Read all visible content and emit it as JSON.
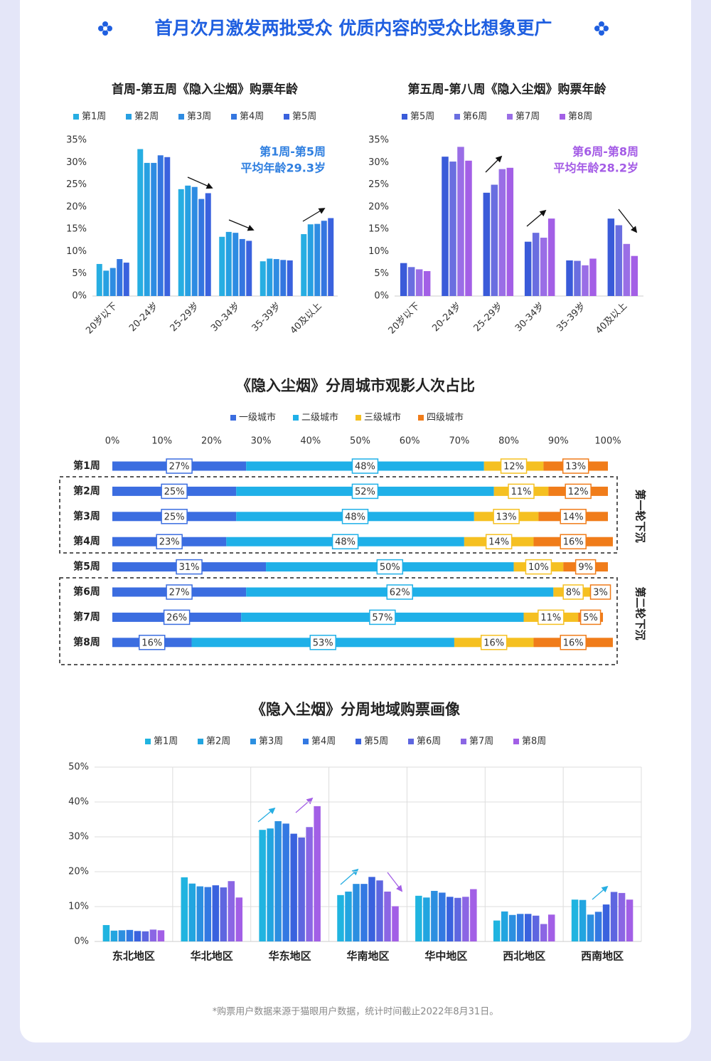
{
  "title": "首月次月激发两批受众 优质内容的受众比想象更广",
  "footnote": "*购票用户数据来源于猫眼用户数据，统计时间截止2022年8月31日。",
  "chart_data": [
    {
      "type": "bar",
      "title": "首周-第五周《隐入尘烟》购票年龄",
      "categories": [
        "20岁以下",
        "20-24岁",
        "25-29岁",
        "30-34岁",
        "35-39岁",
        "40及以上"
      ],
      "series": [
        {
          "name": "第1周",
          "color": "#27aee2",
          "values": [
            7.2,
            33.0,
            24.0,
            13.3,
            7.8,
            13.9
          ]
        },
        {
          "name": "第2周",
          "color": "#27a0e2",
          "values": [
            5.7,
            29.9,
            24.8,
            14.4,
            8.4,
            16.1
          ]
        },
        {
          "name": "第3周",
          "color": "#2e8ce2",
          "values": [
            6.3,
            29.9,
            24.5,
            14.2,
            8.3,
            16.2
          ]
        },
        {
          "name": "第4周",
          "color": "#3476e0",
          "values": [
            8.3,
            31.6,
            21.8,
            12.8,
            8.1,
            16.9
          ]
        },
        {
          "name": "第5周",
          "color": "#3a62de",
          "values": [
            7.5,
            31.2,
            23.1,
            12.4,
            8.0,
            17.5
          ]
        }
      ],
      "ylim": [
        0,
        35
      ],
      "yticks": [
        {
          "value": 0,
          "label": "0%"
        },
        {
          "value": 5,
          "label": "5%"
        },
        {
          "value": 10,
          "label": "10%"
        },
        {
          "value": 15,
          "label": "15%"
        },
        {
          "value": 20,
          "label": "20%"
        },
        {
          "value": 25,
          "label": "25%"
        },
        {
          "value": 30,
          "label": "30%"
        },
        {
          "value": 35,
          "label": "35%"
        }
      ],
      "annotations": [
        "第1周-第5周",
        "平均年龄29.3岁"
      ],
      "annotation_color": "#2f7fe0",
      "grid": false
    },
    {
      "type": "bar",
      "title": "第五周-第八周《隐入尘烟》购票年龄",
      "categories": [
        "20岁以下",
        "20-24岁",
        "25-29岁",
        "30-34岁",
        "35-39岁",
        "40及以上"
      ],
      "series": [
        {
          "name": "第5周",
          "color": "#3a5bd9",
          "values": [
            7.4,
            31.3,
            23.2,
            12.2,
            8.0,
            17.4
          ]
        },
        {
          "name": "第6周",
          "color": "#6a6ee0",
          "values": [
            6.5,
            30.2,
            25.0,
            14.2,
            7.9,
            15.9
          ]
        },
        {
          "name": "第7周",
          "color": "#9a6ee6",
          "values": [
            6.0,
            33.5,
            28.5,
            13.1,
            6.9,
            11.7
          ]
        },
        {
          "name": "第8周",
          "color": "#a35fe6",
          "values": [
            5.6,
            30.4,
            28.8,
            17.4,
            8.4,
            9.0
          ]
        }
      ],
      "ylim": [
        0,
        35
      ],
      "yticks": [
        {
          "value": 0,
          "label": "0%"
        },
        {
          "value": 5,
          "label": "5%"
        },
        {
          "value": 10,
          "label": "10%"
        },
        {
          "value": 15,
          "label": "15%"
        },
        {
          "value": 20,
          "label": "20%"
        },
        {
          "value": 25,
          "label": "25%"
        },
        {
          "value": 30,
          "label": "30%"
        },
        {
          "value": 35,
          "label": "35%"
        }
      ],
      "annotations": [
        "第6周-第8周",
        "平均年龄28.2岁"
      ],
      "annotation_color": "#a45ce6",
      "grid": false
    },
    {
      "type": "stackedbar",
      "title": "《隐入尘烟》分周城市观影人次占比",
      "categories": [
        "第1周",
        "第2周",
        "第3周",
        "第4周",
        "第5周",
        "第6周",
        "第7周",
        "第8周"
      ],
      "series": [
        {
          "name": "一级城市",
          "color": "#3b6de0",
          "values": [
            27,
            25,
            25,
            23,
            31,
            27,
            26,
            16
          ],
          "value_labels": [
            "27%",
            "25%",
            "25%",
            "23%",
            "31%",
            "27%",
            "26%",
            "16%"
          ]
        },
        {
          "name": "二级城市",
          "color": "#1fb0e8",
          "values": [
            48,
            52,
            48,
            48,
            50,
            62,
            57,
            53
          ],
          "value_labels": [
            "48%",
            "52%",
            "48%",
            "48%",
            "50%",
            "62%",
            "57%",
            "53%"
          ]
        },
        {
          "name": "三级城市",
          "color": "#f5c021",
          "values": [
            12,
            11,
            13,
            14,
            10,
            8,
            11,
            16
          ],
          "value_labels": [
            "12%",
            "11%",
            "13%",
            "14%",
            "10%",
            "8%",
            "11%",
            "16%"
          ]
        },
        {
          "name": "四级城市",
          "color": "#f07c1a",
          "values": [
            13,
            12,
            14,
            16,
            9,
            3,
            5,
            16
          ],
          "value_labels": [
            "13%",
            "12%",
            "14%",
            "16%",
            "9%",
            "3%",
            "5%",
            "16%"
          ]
        }
      ],
      "xlim": [
        0,
        100
      ],
      "xticks": [
        {
          "value": 0,
          "label": "0%"
        },
        {
          "value": 10,
          "label": "10%"
        },
        {
          "value": 20,
          "label": "20%"
        },
        {
          "value": 30,
          "label": "30%"
        },
        {
          "value": 40,
          "label": "40%"
        },
        {
          "value": 50,
          "label": "50%"
        },
        {
          "value": 60,
          "label": "60%"
        },
        {
          "value": 70,
          "label": "70%"
        },
        {
          "value": 80,
          "label": "80%"
        },
        {
          "value": 90,
          "label": "90%"
        },
        {
          "value": 100,
          "label": "100%"
        }
      ],
      "annotations": [
        "第一轮下沉",
        "第二轮下沉"
      ],
      "annotation_color": "#222"
    },
    {
      "type": "bar",
      "title": "《隐入尘烟》分周地域购票画像",
      "categories": [
        "东北地区",
        "华北地区",
        "华东地区",
        "华南地区",
        "华中地区",
        "西北地区",
        "西南地区"
      ],
      "series": [
        {
          "name": "第1周",
          "color": "#20b4e0",
          "values": [
            4.7,
            18.4,
            32.0,
            13.3,
            13.1,
            6.0,
            12.0
          ]
        },
        {
          "name": "第2周",
          "color": "#22a5e0",
          "values": [
            3.1,
            16.6,
            32.4,
            14.3,
            12.6,
            8.6,
            11.9
          ]
        },
        {
          "name": "第3周",
          "color": "#2c8fe0",
          "values": [
            3.2,
            15.8,
            34.5,
            16.5,
            14.5,
            7.6,
            7.7
          ]
        },
        {
          "name": "第4周",
          "color": "#3379e2",
          "values": [
            3.3,
            15.6,
            33.8,
            16.5,
            14.0,
            7.9,
            8.5
          ]
        },
        {
          "name": "第5周",
          "color": "#3a62de",
          "values": [
            3.0,
            16.1,
            30.9,
            18.5,
            12.8,
            7.9,
            10.6
          ]
        },
        {
          "name": "第6周",
          "color": "#5e66e0",
          "values": [
            2.9,
            15.5,
            29.8,
            17.5,
            12.5,
            7.4,
            14.2
          ]
        },
        {
          "name": "第7周",
          "color": "#8b66e4",
          "values": [
            3.4,
            17.3,
            32.8,
            14.3,
            12.8,
            5.0,
            13.9
          ]
        },
        {
          "name": "第8周",
          "color": "#a25fe6",
          "values": [
            3.2,
            12.6,
            38.8,
            10.1,
            15.0,
            7.7,
            12.0
          ]
        }
      ],
      "ylim": [
        0,
        50
      ],
      "yticks": [
        {
          "value": 0,
          "label": "0%"
        },
        {
          "value": 10,
          "label": "10%"
        },
        {
          "value": 20,
          "label": "20%"
        },
        {
          "value": 30,
          "label": "30%"
        },
        {
          "value": 40,
          "label": "40%"
        },
        {
          "value": 50,
          "label": "50%"
        }
      ],
      "grid": true
    }
  ]
}
